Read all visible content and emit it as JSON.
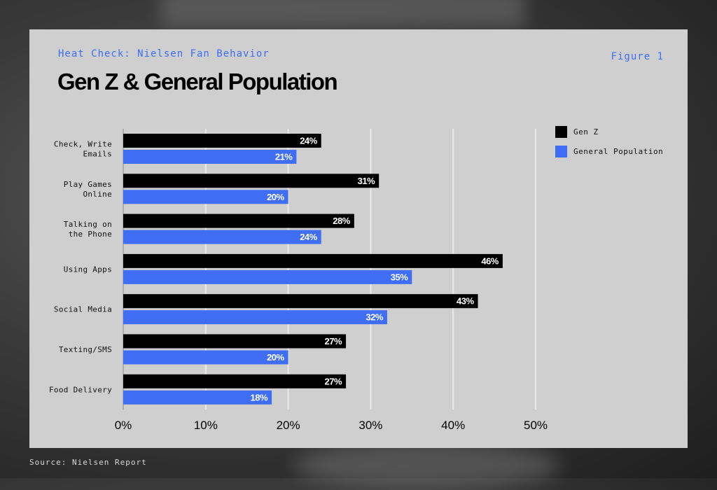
{
  "header": {
    "kicker": "Heat Check: Nielsen Fan Behavior",
    "figure": "Figure 1",
    "title": "Gen Z & General Population"
  },
  "source": "Source: Nielsen Report",
  "colors": {
    "gen_z": "#000000",
    "general_population": "#3f6ef5",
    "card": "#cfcfcf"
  },
  "chart_data": {
    "type": "bar",
    "orientation": "horizontal",
    "categories": [
      [
        "Check, Write",
        "Emails"
      ],
      [
        "Play Games",
        "Online"
      ],
      [
        "Talking on",
        "the Phone"
      ],
      [
        "Using Apps"
      ],
      [
        "Social Media"
      ],
      [
        "Texting/SMS"
      ],
      [
        "Food Delivery"
      ]
    ],
    "series": [
      {
        "name": "Gen Z",
        "values": [
          24,
          31,
          28,
          46,
          43,
          27,
          27
        ]
      },
      {
        "name": "General Population",
        "values": [
          21,
          20,
          24,
          35,
          32,
          20,
          18
        ]
      }
    ],
    "value_labels": [
      [
        "24%",
        "31%",
        "28%",
        "46%",
        "43%",
        "27%",
        "27%"
      ],
      [
        "21%",
        "20%",
        "24%",
        "35%",
        "32%",
        "20%",
        "18%"
      ]
    ],
    "xlim": [
      0,
      50
    ],
    "xticks": [
      "0%",
      "10%",
      "20%",
      "30%",
      "40%",
      "50%"
    ],
    "grid": true,
    "legend": "top-right"
  }
}
